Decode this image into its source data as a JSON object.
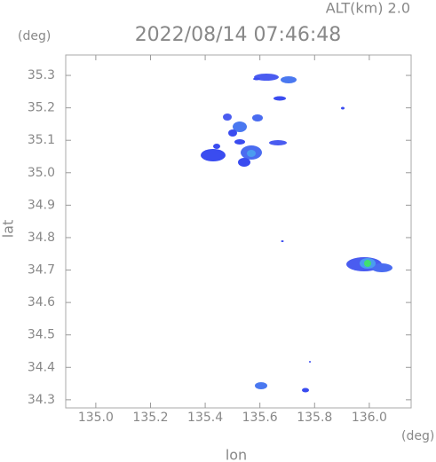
{
  "chart_data": {
    "type": "map",
    "title": "2022/08/14 07:46:48",
    "subtitle": "ALT(km) 2.0",
    "x_label": "lon",
    "x_unit": "(deg)",
    "y_label": "lat",
    "y_unit": "(deg)",
    "xlim": [
      134.89,
      136.153
    ],
    "ylim": [
      34.275,
      35.363
    ],
    "xticks": [
      {
        "value": 135.0,
        "label": "135.0"
      },
      135.2,
      135.4,
      135.6,
      135.8,
      {
        "value": 136.0,
        "label": "136.0"
      }
    ],
    "yticks": [
      34.3,
      34.4,
      34.5,
      34.6,
      34.7,
      34.8,
      34.9,
      {
        "value": 35.0,
        "label": "35.0"
      },
      35.1,
      35.2,
      35.3
    ]
  }
}
